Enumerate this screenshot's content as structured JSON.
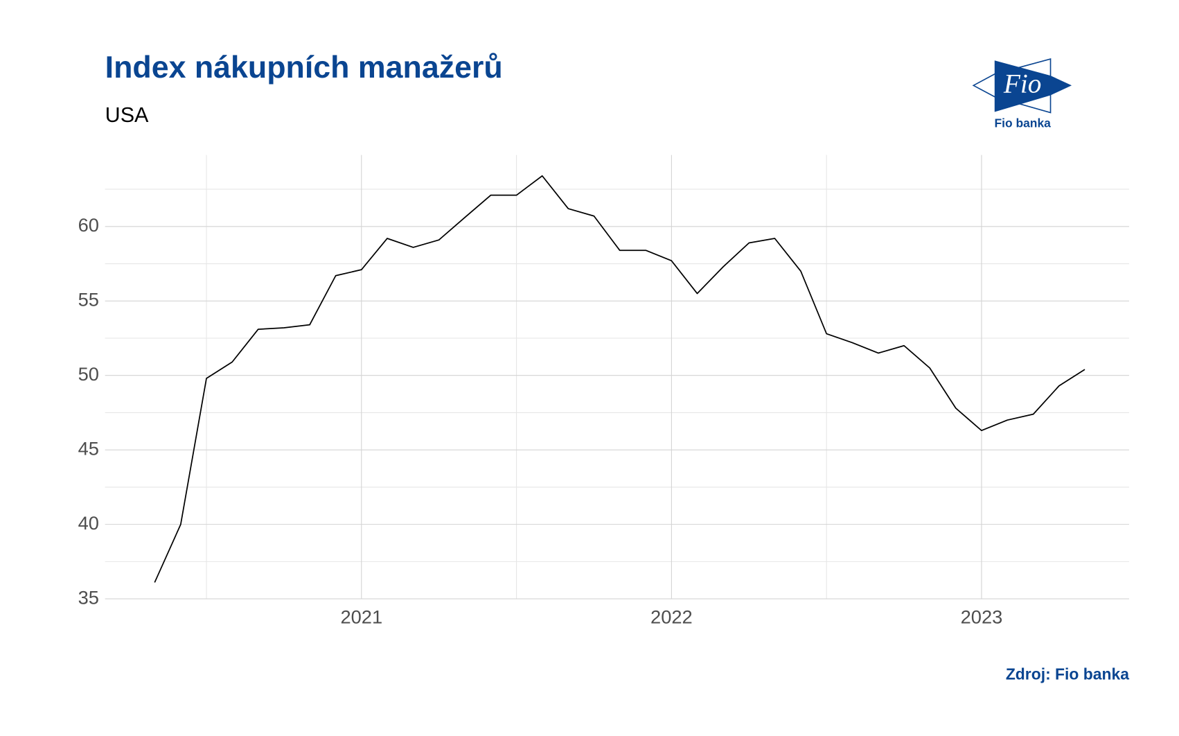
{
  "chart_data": {
    "type": "line",
    "title": "Index nákupních manažerů",
    "subtitle": "USA",
    "source": "Zdroj: Fio banka",
    "logo": {
      "mark": "Fio",
      "text": "Fio banka"
    },
    "x": [
      2020.333,
      2020.417,
      2020.5,
      2020.583,
      2020.667,
      2020.75,
      2020.833,
      2020.917,
      2021,
      2021.083,
      2021.167,
      2021.25,
      2021.333,
      2021.417,
      2021.5,
      2021.583,
      2021.667,
      2021.75,
      2021.833,
      2021.917,
      2022,
      2022.083,
      2022.167,
      2022.25,
      2022.333,
      2022.417,
      2022.5,
      2022.583,
      2022.667,
      2022.75,
      2022.833,
      2022.917,
      2023,
      2023.083,
      2023.167,
      2023.25,
      2023.333
    ],
    "values": [
      36.1,
      40,
      49.8,
      50.9,
      53.1,
      53.2,
      53.4,
      56.7,
      57.1,
      59.2,
      58.6,
      59.1,
      60.6,
      62.1,
      62.1,
      63.4,
      61.2,
      60.7,
      58.4,
      58.4,
      57.7,
      55.5,
      57.3,
      58.9,
      59.2,
      57,
      52.8,
      52.2,
      51.5,
      52,
      50.5,
      47.8,
      46.3,
      47,
      47.4,
      49.3,
      50.4
    ],
    "color": "#000000",
    "xlim": [
      2020.173,
      2023.476
    ],
    "xticks": [
      2021,
      2022,
      2023
    ],
    "ylim": [
      35,
      64.8
    ],
    "yticks": [
      35,
      40,
      45,
      50,
      55,
      60
    ],
    "grid": true
  }
}
